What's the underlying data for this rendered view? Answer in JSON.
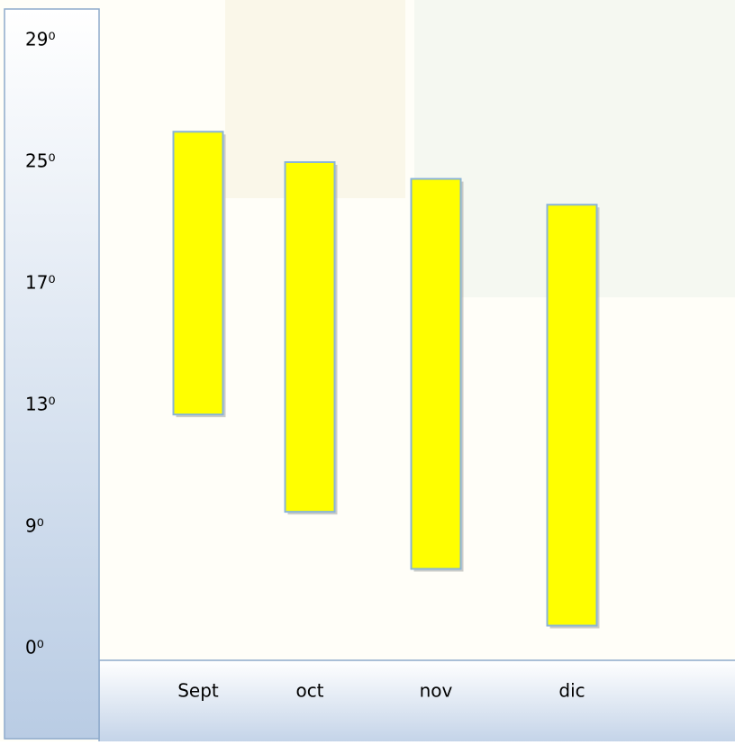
{
  "chart_data": {
    "type": "range-bar",
    "categories": [
      "Sept",
      "oct",
      "nov",
      "dic"
    ],
    "low": [
      12.7,
      9.5,
      5.9,
      1.7
    ],
    "high": [
      26.0,
      25.0,
      23.9,
      22.2
    ],
    "color": "#ffff00",
    "ylim": [
      0,
      29
    ],
    "yticks": [
      {
        "value": 29,
        "label": "29⁰"
      },
      {
        "value": 25,
        "label": "25⁰"
      },
      {
        "value": 17,
        "label": "17⁰"
      },
      {
        "value": 13,
        "label": "13⁰"
      },
      {
        "value": 9,
        "label": "9⁰"
      },
      {
        "value": 0,
        "label": "0⁰"
      }
    ]
  }
}
